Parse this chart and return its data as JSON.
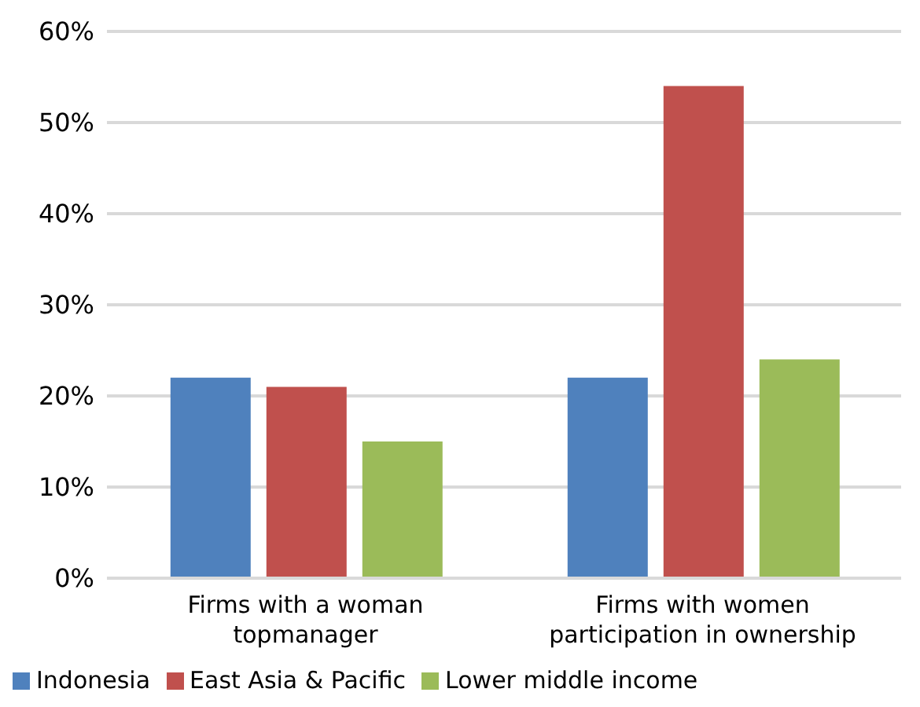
{
  "chart_data": {
    "type": "bar",
    "categories": [
      "Firms with a woman topmanager",
      "Firms with women participation in ownership"
    ],
    "series": [
      {
        "name": "Indonesia",
        "color": "#4f81bd",
        "values": [
          22,
          22
        ]
      },
      {
        "name": "East Asia & Pacific",
        "color": "#c0504d",
        "values": [
          21,
          54
        ]
      },
      {
        "name": "Lower middle income",
        "color": "#9bbb59",
        "values": [
          15,
          24
        ]
      }
    ],
    "ylim": [
      0,
      60
    ],
    "yticks": [
      {
        "value": 0,
        "label": "0%"
      },
      {
        "value": 10,
        "label": "10%"
      },
      {
        "value": 20,
        "label": "20%"
      },
      {
        "value": 30,
        "label": "30%"
      },
      {
        "value": 40,
        "label": "40%"
      },
      {
        "value": 50,
        "label": "50%"
      },
      {
        "value": 60,
        "label": "60%"
      }
    ],
    "grid": "y",
    "legend": "bottom"
  }
}
